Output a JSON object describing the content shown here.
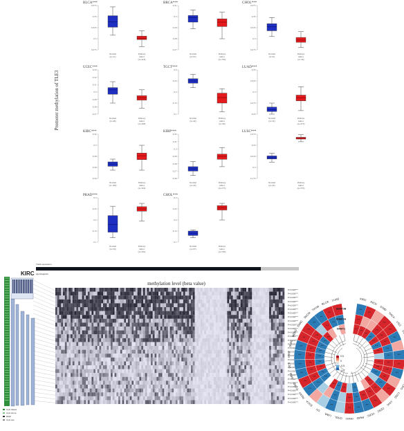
{
  "panel_a": {
    "y_axis_label": "Promoter methylation of TLE3",
    "plots": [
      {
        "title": "BLCA***",
        "normal_label": "Normal",
        "tumor_label": "Primary tumor",
        "normal_n": "(n=21)",
        "tumor_n": "(n=418)",
        "yticks": [
          "0.275",
          "0.3",
          "0.325",
          "0.35",
          "0.375"
        ],
        "normal": {
          "min": 0.308,
          "q1": 0.326,
          "med": 0.338,
          "q3": 0.352,
          "max": 0.372
        },
        "tumor": {
          "min": 0.282,
          "q1": 0.298,
          "med": 0.301,
          "q3": 0.306,
          "max": 0.318
        }
      },
      {
        "title": "BRCA***",
        "normal_label": "Normal",
        "tumor_label": "Primary tumor",
        "normal_n": "(n=97)",
        "tumor_n": "(n=793)",
        "yticks": [
          "0.27",
          "0.28",
          "0.29",
          "0.3",
          "0.31"
        ],
        "normal": {
          "min": 0.289,
          "q1": 0.295,
          "med": 0.299,
          "q3": 0.301,
          "max": 0.306
        },
        "tumor": {
          "min": 0.28,
          "q1": 0.291,
          "med": 0.295,
          "q3": 0.298,
          "max": 0.304
        }
      },
      {
        "title": "CHOL***",
        "normal_label": "Normal",
        "tumor_label": "Primary tumor",
        "normal_n": "(n=9)",
        "tumor_n": "(n=36)",
        "yticks": [
          "0.275",
          "0.3",
          "0.325",
          "0.35",
          "0.375"
        ],
        "normal": {
          "min": 0.305,
          "q1": 0.318,
          "med": 0.327,
          "q3": 0.334,
          "max": 0.348
        },
        "tumor": {
          "min": 0.28,
          "q1": 0.292,
          "med": 0.297,
          "q3": 0.303,
          "max": 0.316
        }
      },
      {
        "title": "UCEC***",
        "normal_label": "Normal",
        "tumor_label": "Primary tumor",
        "normal_n": "(n=46)",
        "tumor_n": "(n=438)",
        "yticks": [
          "0.27",
          "0.28",
          "0.29",
          "0.3",
          "0.31",
          "0.32",
          "0.33"
        ],
        "normal": {
          "min": 0.285,
          "q1": 0.297,
          "med": 0.303,
          "q3": 0.306,
          "max": 0.314
        },
        "tumor": {
          "min": 0.278,
          "q1": 0.289,
          "med": 0.292,
          "q3": 0.295,
          "max": 0.303
        }
      },
      {
        "title": "TGCT***",
        "normal_label": "Normal",
        "tumor_label": "Primary tumor",
        "normal_n": "(n=42)",
        "tumor_n": "(n=40)",
        "yticks": [
          "0.1",
          "0.15",
          "0.2",
          "0.25",
          "0.3"
        ],
        "normal": {
          "min": 0.22,
          "q1": 0.24,
          "med": 0.25,
          "q3": 0.26,
          "max": 0.28
        },
        "tumor": {
          "min": 0.11,
          "q1": 0.15,
          "med": 0.175,
          "q3": 0.195,
          "max": 0.215
        }
      },
      {
        "title": "LUAD***",
        "normal_label": "Normal",
        "tumor_label": "Primary tumor",
        "normal_n": "(n=32)",
        "tumor_n": "(n=473)",
        "yticks": [
          "0.25",
          "0.275",
          "0.3",
          "0.325",
          "0.35"
        ],
        "normal": {
          "min": 0.25,
          "q1": 0.256,
          "med": 0.26,
          "q3": 0.266,
          "max": 0.275
        },
        "tumor": {
          "min": 0.258,
          "q1": 0.28,
          "med": 0.287,
          "q3": 0.293,
          "max": 0.312
        }
      },
      {
        "title": "KIRC***",
        "normal_label": "Normal",
        "tumor_label": "Primary tumor",
        "normal_n": "(n=160)",
        "tumor_n": "(n=324)",
        "yticks": [
          "0.24",
          "0.26",
          "0.28",
          "0.3",
          "0.32"
        ],
        "normal": {
          "min": 0.255,
          "q1": 0.262,
          "med": 0.266,
          "q3": 0.27,
          "max": 0.275
        },
        "tumor": {
          "min": 0.255,
          "q1": 0.274,
          "med": 0.281,
          "q3": 0.286,
          "max": 0.3
        }
      },
      {
        "title": "KIRP***",
        "normal_label": "Normal",
        "tumor_label": "Primary tumor",
        "normal_n": "(n=45)",
        "tumor_n": "(n=275)",
        "yticks": [
          "0.26",
          "0.27",
          "0.28",
          "0.29",
          "0.3",
          "0.31",
          "0.32"
        ],
        "normal": {
          "min": 0.264,
          "q1": 0.27,
          "med": 0.273,
          "q3": 0.276,
          "max": 0.283
        },
        "tumor": {
          "min": 0.276,
          "q1": 0.286,
          "med": 0.29,
          "q3": 0.293,
          "max": 0.302
        }
      },
      {
        "title": "LUSC***",
        "normal_label": "Normal",
        "tumor_label": "Primary tumor",
        "normal_n": "(n=42)",
        "tumor_n": "(n=370)",
        "yticks": [
          "0.175",
          "0.2",
          "0.225",
          "0.25",
          "0.275"
        ],
        "normal": {
          "min": 0.212,
          "q1": 0.219,
          "med": 0.222,
          "q3": 0.226,
          "max": 0.232
        },
        "tumor": {
          "min": 0.258,
          "q1": 0.264,
          "med": 0.266,
          "q3": 0.268,
          "max": 0.274
        }
      },
      {
        "title": "PRAD***",
        "normal_label": "Normal",
        "tumor_label": "Primary tumor",
        "normal_n": "(n=50)",
        "tumor_n": "(n=502)",
        "yticks": [
          "0.1",
          "0.15",
          "0.2",
          "0.25",
          "0.3"
        ],
        "normal": {
          "min": 0.12,
          "q1": 0.145,
          "med": 0.18,
          "q3": 0.22,
          "max": 0.262
        },
        "tumor": {
          "min": 0.195,
          "q1": 0.24,
          "med": 0.25,
          "q3": 0.26,
          "max": 0.275
        }
      },
      {
        "title": "CHOL***",
        "normal_label": "Normal",
        "tumor_label": "Primary tumor",
        "normal_n": "(n=97)",
        "tumor_n": "(n=793)",
        "yticks": [
          "0.1",
          "0.15",
          "0.2",
          "0.25",
          "0.3"
        ],
        "normal": {
          "min": 0.12,
          "q1": 0.13,
          "med": 0.14,
          "q3": 0.15,
          "max": 0.155
        },
        "tumor": {
          "min": 0.2,
          "q1": 0.245,
          "med": 0.255,
          "q3": 0.265,
          "max": 0.275
        }
      }
    ]
  },
  "panel_b": {
    "title": "KIRC",
    "subtitle": "methylation level (beta value)",
    "legend_top": [
      "TLE3 expression",
      "age/stage/etc"
    ],
    "legend_bottom": [
      "CpG Island",
      "CpG shore",
      "DMR",
      "CpG site"
    ],
    "pvalues": [
      "P=0.000***",
      "P=0.000***",
      "P=0.000***",
      "P=0.000***",
      "P=0.000***",
      "P=0.000***",
      "P=0.000***",
      "P=0.000***",
      "P=0.000***",
      "P=0.000***",
      "P=0.000***",
      "P=0.000***",
      "P=0.000***",
      "P=0.000***",
      "P=0.000***",
      "P=0.000***",
      "P=0.000***",
      "P=0.000***",
      "P=0.000***",
      "P=0.000***",
      "P=0.000***",
      "P=0.000***",
      "P=0.000***",
      "P=0.000***",
      "P=0.000***",
      "P=0.000***",
      "P=0.000***",
      "P=0.000***",
      "P=0.000***",
      "P=0.000***"
    ]
  },
  "panel_c": {
    "inner_labels": [
      "DNMT3B",
      "DNMT3A",
      "DNMT1"
    ],
    "cancers": [
      "KIRC",
      "KICH",
      "STAD",
      "THCA",
      "LGG",
      "UVM",
      "PRAD",
      "TGCT",
      "BRCA",
      "ACC",
      "PCPG",
      "LUSC",
      "LIHC",
      "CESC",
      "UCEC",
      "PAAD",
      "HNSC",
      "CHOL",
      "LAML",
      "OV",
      "ESCA",
      "READ",
      "COAD",
      "GBM",
      "UCS",
      "KIRP",
      "DLBC",
      "MESO",
      "SARC",
      "SKCM",
      "THYM",
      "BLCA",
      "LUAD"
    ],
    "legend_ticks": [
      "0.5",
      "0",
      "-0.5",
      "-1.0"
    ],
    "colors": {
      "red": "#d6262b",
      "blue": "#2b7bb6",
      "light_red": "#f2a7a0",
      "light_blue": "#a9cfe5"
    }
  }
}
